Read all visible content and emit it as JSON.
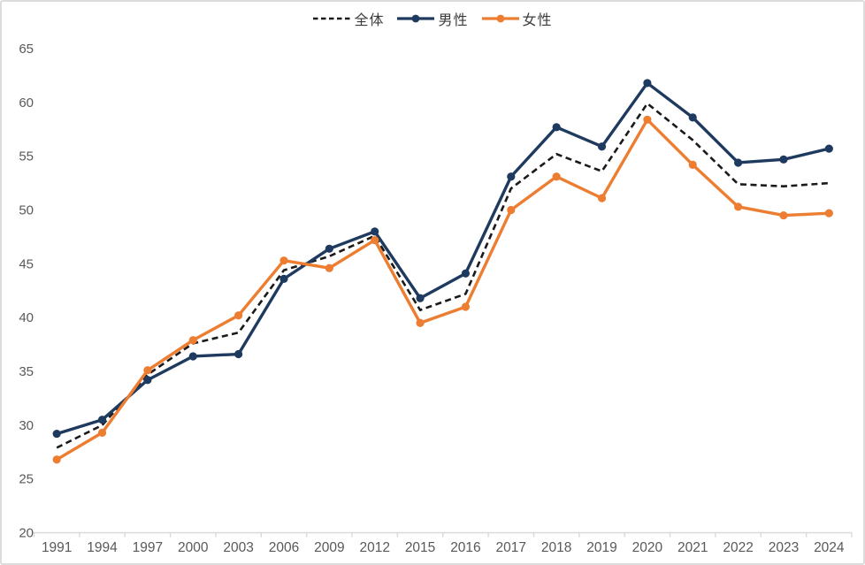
{
  "chart_data": {
    "type": "line",
    "title": "",
    "xlabel": "",
    "ylabel": "",
    "grid": false,
    "legend_position": "top-center",
    "ylim": [
      20,
      65
    ],
    "y_ticks": [
      65,
      60,
      55,
      50,
      45,
      40,
      35,
      30,
      25,
      20
    ],
    "categories": [
      "1991",
      "1994",
      "1997",
      "2000",
      "2003",
      "2006",
      "2009",
      "2012",
      "2015",
      "2016",
      "2017",
      "2018",
      "2019",
      "2020",
      "2021",
      "2022",
      "2023",
      "2024"
    ],
    "series": [
      {
        "id": "overall",
        "name": "全体",
        "color": "#1a1a1a",
        "style": "dashed",
        "marker": false,
        "values": [
          27.9,
          30.0,
          34.7,
          37.6,
          38.6,
          44.4,
          45.7,
          47.6,
          40.7,
          42.2,
          52.0,
          55.2,
          53.6,
          59.9,
          56.5,
          52.4,
          52.2,
          52.5
        ]
      },
      {
        "id": "male",
        "name": "男性",
        "color": "#1f3a5f",
        "style": "solid",
        "marker": true,
        "values": [
          29.2,
          30.5,
          34.2,
          36.4,
          36.6,
          43.6,
          46.4,
          48.0,
          41.8,
          44.1,
          53.1,
          57.7,
          55.9,
          61.8,
          58.6,
          54.4,
          54.7,
          55.7
        ]
      },
      {
        "id": "female",
        "name": "女性",
        "color": "#ed7d31",
        "style": "solid",
        "marker": true,
        "values": [
          26.8,
          29.3,
          35.1,
          37.9,
          40.2,
          45.3,
          44.6,
          47.2,
          39.5,
          41.0,
          50.0,
          53.1,
          51.1,
          58.4,
          54.2,
          50.3,
          49.5,
          49.7
        ]
      }
    ]
  },
  "colors": {
    "background": "#ffffff",
    "border": "#dcdcdc",
    "axis_line": "#d9d9d9",
    "axis_label": "#595959",
    "legend_text": "#3b3b3b"
  }
}
